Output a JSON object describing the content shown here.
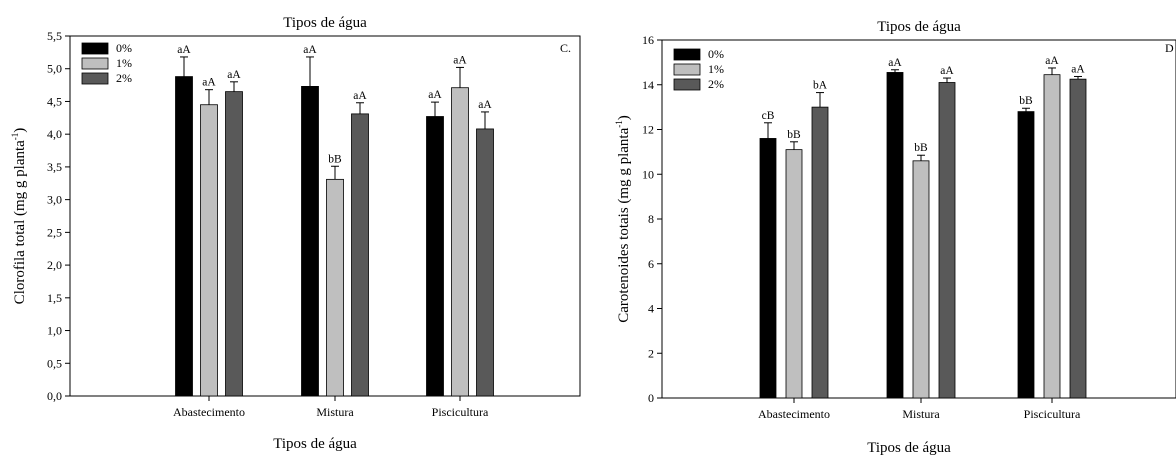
{
  "chart_data": [
    {
      "type": "bar",
      "panel_letter": "C.",
      "title": "Tipos de água",
      "xlabel": "Tipos de água",
      "ylabel_main": "Clorofila total (mg g planta",
      "ylabel_sup": "-1",
      "ylabel_tail": ")",
      "categories": [
        "Abastecimento",
        "Mistura",
        "Piscicultura"
      ],
      "series": [
        {
          "name": "0%",
          "values": [
            4.88,
            4.73,
            4.27
          ],
          "errors": [
            0.3,
            0.45,
            0.22
          ],
          "labels": [
            "aA",
            "aA",
            "aA"
          ]
        },
        {
          "name": "1%",
          "values": [
            4.45,
            3.31,
            4.71
          ],
          "errors": [
            0.23,
            0.2,
            0.31
          ],
          "labels": [
            "aA",
            "bB",
            "aA"
          ]
        },
        {
          "name": "2%",
          "values": [
            4.65,
            4.31,
            4.08
          ],
          "errors": [
            0.15,
            0.17,
            0.26
          ],
          "labels": [
            "aA",
            "aA",
            "aA"
          ]
        }
      ],
      "ylim": [
        0,
        5.5
      ],
      "yticks": [
        "0,0",
        "0,5",
        "1,0",
        "1,5",
        "2,0",
        "2,5",
        "3,0",
        "3,5",
        "4,0",
        "4,5",
        "5,0",
        "5,5"
      ],
      "legend_position": "top-left",
      "grid": false
    },
    {
      "type": "bar",
      "panel_letter": "D",
      "title": "Tipos de água",
      "xlabel": "Tipos de água",
      "ylabel_main": "Carotenoides totais (mg g planta",
      "ylabel_sup": "-1",
      "ylabel_tail": ")",
      "categories": [
        "Abastecimento",
        "Mistura",
        "Piscicultura"
      ],
      "series": [
        {
          "name": "0%",
          "values": [
            11.6,
            14.55,
            12.8
          ],
          "errors": [
            0.7,
            0.12,
            0.15
          ],
          "labels": [
            "cB",
            "aA",
            "bB"
          ]
        },
        {
          "name": "1%",
          "values": [
            11.1,
            10.6,
            14.45
          ],
          "errors": [
            0.35,
            0.25,
            0.3
          ],
          "labels": [
            "bB",
            "bB",
            "aA"
          ]
        },
        {
          "name": "2%",
          "values": [
            13.0,
            14.1,
            14.25
          ],
          "errors": [
            0.65,
            0.2,
            0.12
          ],
          "labels": [
            "bA",
            "aA",
            "aA"
          ]
        }
      ],
      "ylim": [
        0,
        16
      ],
      "yticks": [
        "0",
        "2",
        "4",
        "6",
        "8",
        "10",
        "12",
        "14",
        "16"
      ],
      "legend_position": "top-left",
      "grid": false
    }
  ],
  "colors": {
    "series": [
      "#000000",
      "#bfbfbf",
      "#595959"
    ],
    "axis": "#000000"
  }
}
